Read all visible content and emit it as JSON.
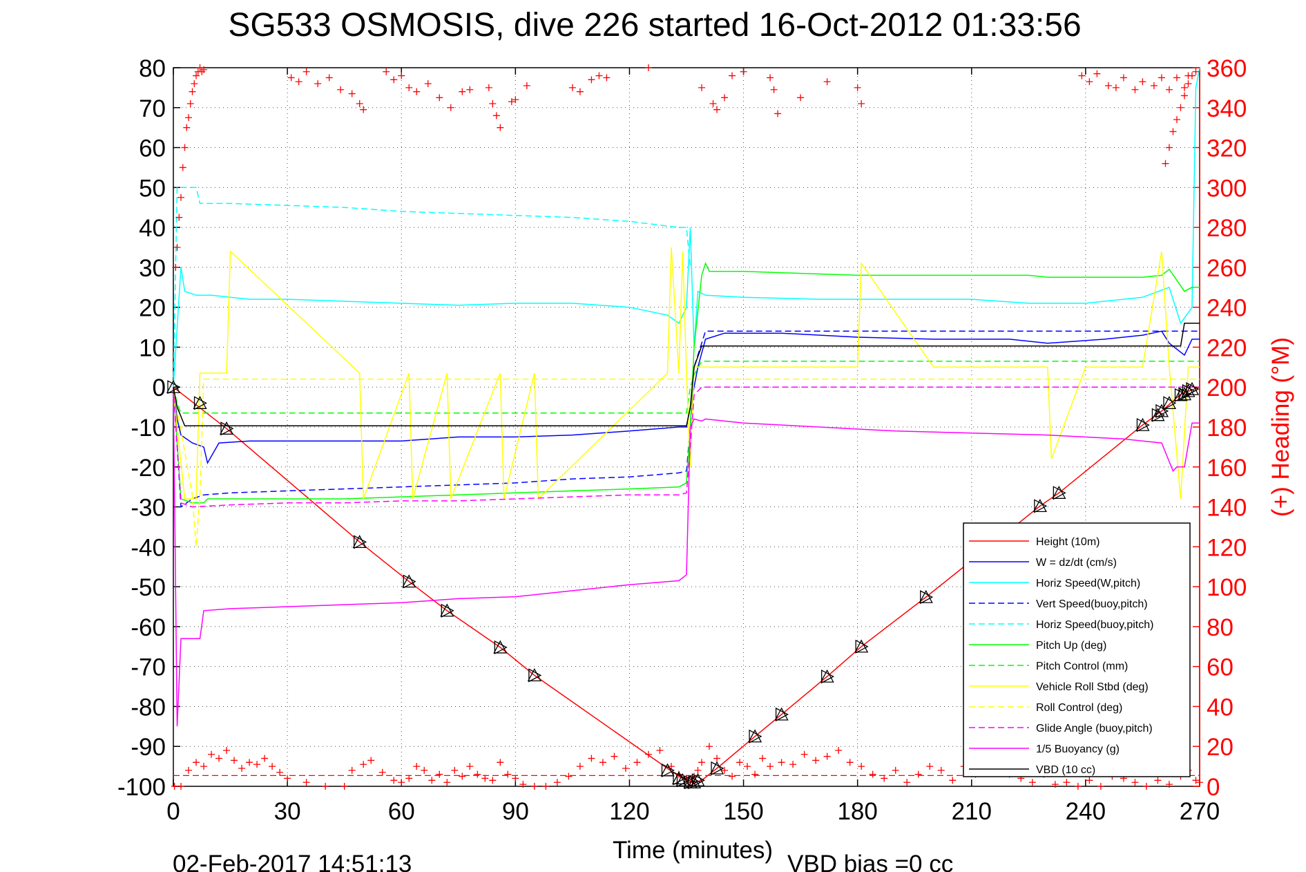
{
  "chart_data": {
    "type": "line",
    "title": "SG533 OSMOSIS, dive 226 started 16-Oct-2012 01:33:56",
    "xlabel": "Time (minutes)",
    "ylabel": "",
    "y2label": "(+) Heading (°M)",
    "xlim": [
      0,
      270
    ],
    "ylim": [
      -100,
      80
    ],
    "y2lim": [
      0,
      360
    ],
    "xticks": [
      "0",
      "30",
      "60",
      "90",
      "120",
      "150",
      "180",
      "210",
      "240",
      "270"
    ],
    "yticks": [
      "80",
      "70",
      "60",
      "50",
      "40",
      "30",
      "20",
      "10",
      "0",
      "-10",
      "-20",
      "-30",
      "-40",
      "-50",
      "-60",
      "-70",
      "-80",
      "-90",
      "-100"
    ],
    "y2ticks": [
      "360",
      "340",
      "320",
      "300",
      "280",
      "260",
      "240",
      "220",
      "200",
      "180",
      "160",
      "140",
      "120",
      "100",
      "80",
      "60",
      "40",
      "20",
      "0"
    ],
    "grid": true,
    "legend_position": "bottom-right",
    "timestamp": "02-Feb-2017 14:51:13",
    "vbd_bias": "VBD bias =0 cc",
    "colors": {
      "height": "#ff0000",
      "w": "#0000ff",
      "horiz": "#00ffff",
      "pitch": "#00ff00",
      "roll": "#ffff00",
      "glide": "#ff00ff",
      "vbd": "#000000",
      "heading": "#ff0000"
    },
    "series": [
      {
        "name": "Height (10m)",
        "color": "#ff0000",
        "dash": false,
        "x": [
          0,
          14,
          49,
          62,
          72,
          86,
          95,
          131,
          134,
          137,
          139,
          143,
          153,
          160,
          172,
          181,
          198,
          228,
          233,
          255,
          260,
          265,
          270
        ],
        "y": [
          0,
          -10.4,
          -38.8,
          -48.7,
          -56,
          -65.2,
          -72.2,
          -96.2,
          -98,
          -99,
          -98.5,
          -95.5,
          -87.5,
          -82,
          -72.5,
          -65,
          -52.6,
          -29.8,
          -26.5,
          -9.5,
          -6,
          -1.8,
          0
        ]
      },
      {
        "name": "W = dz/dt (cm/s)",
        "color": "#0000ff",
        "dash": false,
        "x": [
          0,
          1,
          2,
          5,
          8,
          9,
          12,
          20,
          30,
          45,
          60,
          75,
          90,
          105,
          120,
          133,
          135,
          136,
          138,
          140,
          145,
          160,
          180,
          200,
          220,
          230,
          245,
          255,
          260,
          262,
          266,
          268,
          270
        ],
        "y": [
          0,
          -8,
          -12,
          -14,
          -15,
          -19,
          -14,
          -13.5,
          -13.5,
          -13.5,
          -13.5,
          -12.5,
          -12.5,
          -12,
          -11,
          -10,
          -10,
          -5,
          5,
          12,
          13.5,
          13.5,
          12.5,
          12,
          12,
          11,
          12,
          13,
          14,
          11,
          8,
          12,
          12
        ]
      },
      {
        "name": "Horiz Speed(W,pitch)",
        "color": "#00ffff",
        "dash": false,
        "x": [
          0,
          1,
          2,
          3,
          6,
          10,
          20,
          30,
          45,
          60,
          75,
          90,
          105,
          120,
          130,
          133,
          135,
          136,
          137,
          138,
          140,
          150,
          170,
          190,
          210,
          225,
          240,
          255,
          262,
          265,
          268,
          269,
          270
        ],
        "y": [
          0,
          15,
          30,
          24,
          23,
          23,
          22,
          22,
          21.5,
          21,
          20.5,
          21,
          21,
          20,
          18,
          16,
          20,
          40,
          10,
          24,
          23,
          22.5,
          22,
          22,
          22,
          21,
          21,
          22.5,
          25,
          16,
          20,
          75,
          80
        ]
      },
      {
        "name": "Vert Speed(buoy,pitch)",
        "color": "#0000ff",
        "dash": true,
        "x": [
          0,
          2,
          5,
          8,
          15,
          30,
          45,
          60,
          75,
          90,
          105,
          120,
          133,
          135,
          136,
          137,
          140,
          270
        ],
        "y": [
          0,
          -30,
          -28,
          -27,
          -26.5,
          -26,
          -25.5,
          -25,
          -24.5,
          -24,
          -23,
          -22.5,
          -21.5,
          -21,
          -10,
          5,
          14,
          14
        ]
      },
      {
        "name": "Horiz Speed(buoy,pitch)",
        "color": "#00ffff",
        "dash": true,
        "x": [
          0,
          1,
          2,
          6,
          7,
          15,
          30,
          45,
          60,
          75,
          90,
          105,
          120,
          133,
          135,
          136
        ],
        "y": [
          0,
          50,
          50,
          50,
          46,
          46,
          45.5,
          45,
          44,
          43.5,
          43,
          42.5,
          41.5,
          40,
          40,
          30
        ]
      },
      {
        "name": "Pitch Up (deg)",
        "color": "#00ff00",
        "dash": false,
        "x": [
          0,
          2,
          5,
          8,
          9,
          15,
          30,
          45,
          60,
          75,
          90,
          105,
          120,
          133,
          135,
          136,
          137,
          139,
          140,
          141,
          150,
          165,
          180,
          200,
          210,
          225,
          230,
          240,
          255,
          260,
          262,
          266,
          268,
          270
        ],
        "y": [
          0,
          -28,
          -29,
          -29,
          -28,
          -28,
          -28,
          -28,
          -27.5,
          -27,
          -26.5,
          -26,
          -25.5,
          -25,
          -24,
          -10,
          10,
          28,
          31,
          29,
          29,
          28.5,
          28,
          28,
          28,
          28,
          27.5,
          27.5,
          27.5,
          28,
          29.5,
          24,
          25,
          25
        ]
      },
      {
        "name": "Pitch Control (mm)",
        "color": "#00ff00",
        "dash": true,
        "x": [
          0,
          1,
          2,
          130,
          135,
          136,
          137,
          139,
          270
        ],
        "y": [
          0,
          -4,
          -6.5,
          -6.5,
          -6.5,
          0,
          3,
          6.5,
          6.5
        ]
      },
      {
        "name": "Vehicle Roll Stbd (deg)",
        "color": "#ffff00",
        "dash": false,
        "x": [
          0,
          1,
          3,
          6,
          7,
          14,
          15,
          49,
          50,
          62,
          63,
          72,
          73,
          86,
          87,
          95,
          96,
          130,
          131,
          133,
          134,
          135,
          136,
          137,
          139,
          160,
          180,
          181,
          200,
          210,
          230,
          231,
          240,
          255,
          260,
          262,
          265,
          267,
          270
        ],
        "y": [
          0,
          -10,
          -28,
          -28,
          3.5,
          3.5,
          34,
          3.5,
          -28,
          3.5,
          -28,
          3.5,
          -28,
          3.5,
          -28,
          3.5,
          -28,
          3.5,
          35,
          3.5,
          34,
          3.5,
          -20,
          5,
          5,
          5,
          5,
          31,
          5,
          5,
          5,
          -18,
          5,
          5,
          34,
          5,
          -28,
          5,
          5
        ]
      },
      {
        "name": "Roll Control (deg)",
        "color": "#ffff00",
        "dash": true,
        "x": [
          0,
          5,
          6,
          7,
          8,
          270
        ],
        "y": [
          0,
          -27,
          -40,
          -27,
          2,
          2
        ]
      },
      {
        "name": "Glide Angle (buoy,pitch)",
        "color": "#ff00ff",
        "dash": true,
        "x": [
          0,
          2,
          5,
          15,
          30,
          45,
          60,
          75,
          90,
          105,
          120,
          133,
          135,
          136,
          137,
          139,
          270
        ],
        "y": [
          0,
          -29,
          -30,
          -29.5,
          -29,
          -29,
          -28.5,
          -28.5,
          -28,
          -27.5,
          -27,
          -27,
          -26.5,
          -15,
          -2,
          0,
          0
        ]
      },
      {
        "name": "1/5 Buoyancy (g)",
        "color": "#ff00ff",
        "dash": false,
        "x": [
          0,
          1,
          2,
          7,
          8,
          15,
          30,
          45,
          60,
          75,
          90,
          105,
          120,
          133,
          135,
          136,
          137,
          139,
          140,
          150,
          170,
          190,
          210,
          230,
          250,
          260,
          263,
          264,
          266,
          268,
          269,
          270
        ],
        "y": [
          0,
          -85,
          -63,
          -63,
          -56,
          -55.5,
          -55,
          -54.5,
          -54,
          -53,
          -52.5,
          -51,
          -49.5,
          -48.5,
          -47,
          -10,
          -8,
          -8.5,
          -8,
          -9,
          -10,
          -11,
          -11.5,
          -12,
          -13,
          -14,
          -21,
          -20,
          -20,
          -9,
          -9,
          -9
        ]
      },
      {
        "name": "VBD (10 cc)",
        "color": "#000000",
        "dash": false,
        "x": [
          0,
          1,
          3,
          4,
          133,
          135,
          136,
          137,
          139,
          140,
          265,
          266,
          270
        ],
        "y": [
          0,
          -5,
          -9.7,
          -9.7,
          -9.7,
          -9.7,
          -5,
          5,
          10.3,
          10.3,
          10.3,
          16,
          16
        ]
      }
    ],
    "markers": {
      "x": [
        0,
        7,
        14,
        49,
        62,
        72,
        86,
        95,
        130,
        133,
        134,
        136,
        137,
        138,
        143,
        153,
        160,
        172,
        181,
        198,
        228,
        233,
        255,
        259,
        260,
        262,
        265,
        266,
        267,
        268
      ],
      "y": [
        0,
        -4,
        -10.4,
        -38.8,
        -48.7,
        -56,
        -65.2,
        -72.2,
        -96,
        -98,
        -98.5,
        -99,
        -99,
        -98.5,
        -95.5,
        -87.5,
        -82,
        -72.5,
        -65,
        -52.6,
        -29.8,
        -26.5,
        -9.5,
        -7,
        -6,
        -4,
        -2,
        -1.8,
        -1,
        -0.5
      ]
    },
    "heading": {
      "top": {
        "x": [
          31,
          33,
          35,
          38,
          41,
          44,
          47,
          49,
          50,
          56,
          58,
          60,
          62,
          64,
          67,
          70,
          73,
          76,
          78,
          83,
          84,
          85,
          86,
          89,
          90,
          93,
          105,
          107,
          110,
          112,
          114,
          125,
          139,
          142,
          143,
          145,
          147,
          150,
          157,
          158,
          159,
          165,
          172,
          180,
          181,
          239,
          241,
          243,
          246,
          248,
          250,
          253,
          255,
          258,
          260,
          262,
          264,
          266,
          267
        ],
        "y": [
          355,
          353,
          358,
          352,
          355,
          349,
          347,
          342,
          339,
          358,
          354,
          356,
          350,
          348,
          352,
          345,
          340,
          348,
          349,
          350,
          342,
          336,
          330,
          343,
          344,
          351,
          350,
          348,
          354,
          356,
          355,
          360,
          350,
          342,
          339,
          345,
          356,
          358,
          355,
          349,
          337,
          345,
          353,
          350,
          342,
          356,
          353,
          357,
          351,
          350,
          355,
          349,
          353,
          351,
          355,
          349,
          355,
          350,
          356
        ]
      },
      "bottom": {
        "x": [
          2,
          4,
          6,
          8,
          10,
          12,
          14,
          16,
          18,
          20,
          22,
          24,
          26,
          28,
          30,
          35,
          40,
          45,
          47,
          50,
          52,
          55,
          58,
          60,
          62,
          64,
          66,
          68,
          70,
          72,
          74,
          76,
          78,
          80,
          82,
          84,
          86,
          88,
          90,
          92,
          95,
          98,
          101,
          104,
          107,
          110,
          113,
          116,
          119,
          122,
          125,
          128,
          131,
          133,
          135,
          136,
          137,
          138,
          139,
          141,
          143,
          145,
          147,
          149,
          151,
          153,
          155,
          157,
          160,
          163,
          166,
          169,
          172,
          175,
          178,
          181,
          184,
          187,
          190,
          193,
          196,
          199,
          202,
          205,
          208,
          211,
          214,
          217,
          220,
          223,
          226,
          229,
          232,
          235,
          238,
          241,
          244,
          247,
          250,
          253,
          256,
          259,
          262,
          265,
          267,
          269,
          270
        ],
        "y": [
          0,
          8,
          12,
          10,
          16,
          14,
          18,
          13,
          9,
          12,
          11,
          14,
          10,
          7,
          4,
          2,
          0,
          0,
          8,
          11,
          13,
          7,
          3,
          2,
          4,
          10,
          8,
          3,
          6,
          2,
          8,
          5,
          10,
          6,
          4,
          3,
          12,
          6,
          4,
          1,
          0,
          0,
          2,
          5,
          10,
          14,
          12,
          15,
          9,
          12,
          16,
          18,
          10,
          6,
          4,
          2,
          5,
          8,
          12,
          20,
          14,
          8,
          5,
          12,
          10,
          6,
          14,
          10,
          12,
          11,
          16,
          13,
          15,
          18,
          12,
          10,
          6,
          4,
          8,
          2,
          6,
          10,
          8,
          3,
          10,
          6,
          14,
          10,
          6,
          4,
          2,
          6,
          1,
          2,
          0,
          3,
          0,
          5,
          4,
          2,
          0,
          3,
          1,
          5,
          8,
          3,
          2
        ]
      },
      "left": {
        "x": [
          0.3,
          0.6,
          1,
          1.5,
          2,
          2.5,
          3,
          3.5,
          4,
          4.5,
          5,
          5.5,
          6,
          6.5,
          7,
          7.5,
          8
        ],
        "y": [
          0,
          260,
          270,
          285,
          295,
          310,
          320,
          330,
          335,
          342,
          348,
          352,
          356,
          358,
          360,
          358,
          359
        ]
      },
      "right": {
        "x": [
          261,
          262,
          263,
          264,
          265,
          266,
          267,
          268,
          269
        ],
        "y": [
          312,
          320,
          328,
          334,
          340,
          346,
          352,
          356,
          358
        ]
      },
      "dashed_level": -97.3
    }
  }
}
